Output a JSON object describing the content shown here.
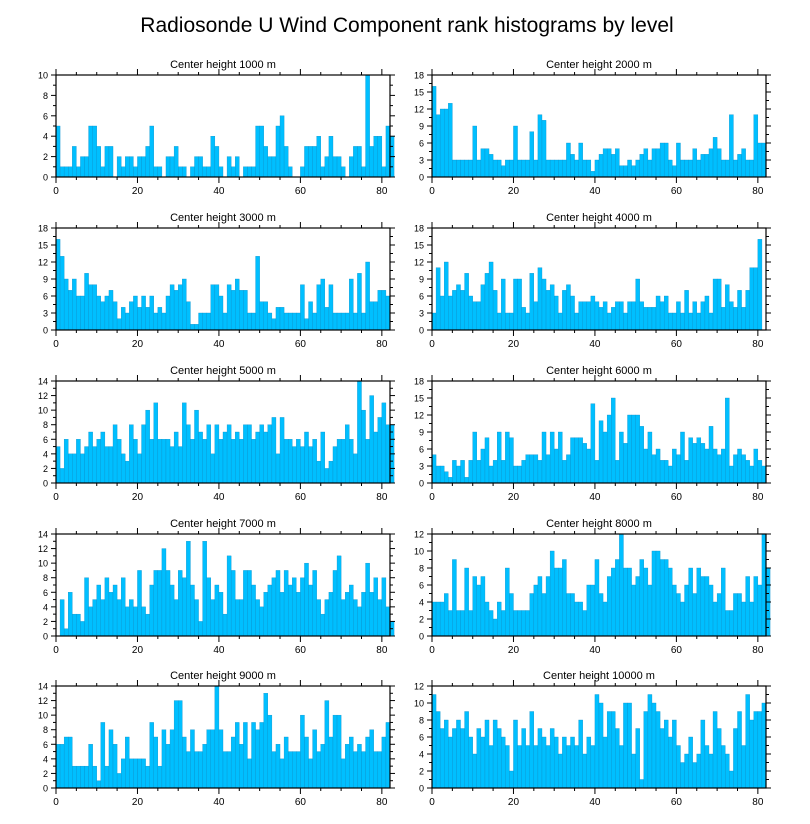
{
  "title": "Radiosonde U Wind Component rank histograms by level",
  "colors": {
    "bar": "#00BFFF",
    "bar_edge": "#0a8fc8",
    "axis": "#000000"
  },
  "chart_data": [
    {
      "type": "bar",
      "title": "Center height 1000 m",
      "xlabel": "",
      "ylabel": "",
      "xlim": [
        0,
        82
      ],
      "ylim": [
        0,
        10
      ],
      "xticks": [
        0,
        20,
        40,
        60,
        80
      ],
      "xtick_labels": [
        "0",
        "20",
        "40",
        "60",
        "80"
      ],
      "yticks": [
        0,
        2,
        4,
        6,
        8,
        10
      ],
      "ytick_labels": [
        "0",
        "2",
        "4",
        "6",
        "8",
        "10"
      ],
      "values": [
        5,
        1,
        1,
        1,
        3,
        1,
        2,
        2,
        5,
        5,
        3,
        1,
        3,
        3,
        0,
        2,
        1,
        2,
        2,
        1,
        2,
        2,
        3,
        5,
        1,
        1,
        0,
        2,
        2,
        3,
        1,
        1,
        0,
        1,
        2,
        2,
        1,
        1,
        4,
        3,
        1,
        0,
        2,
        1,
        2,
        0,
        1,
        1,
        1,
        5,
        5,
        3,
        2,
        2,
        5,
        6,
        3,
        1,
        0,
        0,
        1,
        3,
        3,
        3,
        4,
        1,
        2,
        4,
        2,
        2,
        1,
        0,
        2,
        3,
        3,
        1,
        10,
        3,
        4,
        4,
        1,
        5,
        4
      ],
      "series_name": "1000 m"
    },
    {
      "type": "bar",
      "title": "Center height 2000 m",
      "xlabel": "",
      "ylabel": "",
      "xlim": [
        0,
        82
      ],
      "ylim": [
        0,
        18
      ],
      "xticks": [
        0,
        20,
        40,
        60,
        80
      ],
      "xtick_labels": [
        "0",
        "20",
        "40",
        "60",
        "80"
      ],
      "yticks": [
        0,
        3,
        6,
        9,
        12,
        15,
        18
      ],
      "ytick_labels": [
        "0",
        "3",
        "6",
        "9",
        "12",
        "15",
        "18"
      ],
      "values": [
        16,
        11,
        12,
        12,
        13,
        3,
        3,
        3,
        3,
        3,
        9,
        3,
        5,
        5,
        4,
        3,
        3,
        2,
        3,
        3,
        9,
        3,
        3,
        3,
        8,
        3,
        11,
        10,
        3,
        3,
        3,
        3,
        3,
        6,
        4,
        3,
        6,
        3,
        3,
        1,
        3,
        4,
        5,
        5,
        4,
        5,
        2,
        2,
        3,
        2,
        3,
        4,
        5,
        3,
        5,
        5,
        6,
        6,
        3,
        2,
        6,
        3,
        3,
        3,
        5,
        3,
        4,
        4,
        5,
        7,
        5,
        3,
        3,
        11,
        3,
        4,
        5,
        3,
        3,
        11,
        6,
        6
      ],
      "series_name": "2000 m"
    },
    {
      "type": "bar",
      "title": "Center height 3000 m",
      "xlabel": "",
      "ylabel": "",
      "xlim": [
        0,
        82
      ],
      "ylim": [
        0,
        18
      ],
      "xticks": [
        0,
        20,
        40,
        60,
        80
      ],
      "xtick_labels": [
        "0",
        "20",
        "40",
        "60",
        "80"
      ],
      "yticks": [
        0,
        3,
        6,
        9,
        12,
        15,
        18
      ],
      "ytick_labels": [
        "0",
        "3",
        "6",
        "9",
        "12",
        "15",
        "18"
      ],
      "values": [
        16,
        13,
        9,
        7,
        9,
        6,
        6,
        10,
        8,
        8,
        6,
        5,
        6,
        7,
        5,
        2,
        4,
        3,
        5,
        6,
        4,
        6,
        4,
        6,
        3,
        4,
        3,
        6,
        8,
        7,
        8,
        9,
        5,
        1,
        1,
        3,
        3,
        3,
        8,
        8,
        6,
        3,
        8,
        7,
        9,
        7,
        7,
        3,
        3,
        13,
        5,
        5,
        3,
        2,
        4,
        4,
        3,
        3,
        3,
        3,
        8,
        2,
        5,
        3,
        8,
        9,
        4,
        8,
        3,
        3,
        3,
        3,
        9,
        3,
        10,
        3,
        12,
        5,
        5,
        7,
        7,
        6
      ],
      "series_name": "3000 m"
    },
    {
      "type": "bar",
      "title": "Center height 4000 m",
      "xlabel": "",
      "ylabel": "",
      "xlim": [
        0,
        82
      ],
      "ylim": [
        0,
        18
      ],
      "xticks": [
        0,
        20,
        40,
        60,
        80
      ],
      "xtick_labels": [
        "0",
        "20",
        "40",
        "60",
        "80"
      ],
      "yticks": [
        0,
        3,
        6,
        9,
        12,
        15,
        18
      ],
      "ytick_labels": [
        "0",
        "3",
        "6",
        "9",
        "12",
        "15",
        "18"
      ],
      "values": [
        3,
        11,
        6,
        12,
        6,
        7,
        8,
        7,
        10,
        6,
        5,
        5,
        8,
        10,
        12,
        7,
        3,
        9,
        3,
        3,
        9,
        9,
        4,
        3,
        10,
        5,
        11,
        9,
        7,
        8,
        6,
        3,
        7,
        8,
        6,
        3,
        5,
        5,
        5,
        6,
        5,
        4,
        5,
        3,
        4,
        5,
        5,
        3,
        5,
        5,
        9,
        5,
        4,
        4,
        4,
        6,
        5,
        6,
        3,
        3,
        5,
        3,
        7,
        3,
        5,
        3,
        5,
        6,
        3,
        9,
        9,
        4,
        8,
        5,
        4,
        7,
        4,
        7,
        11,
        11,
        16
      ],
      "series_name": "4000 m"
    },
    {
      "type": "bar",
      "title": "Center height 5000 m",
      "xlabel": "",
      "ylabel": "",
      "xlim": [
        0,
        82
      ],
      "ylim": [
        0,
        14
      ],
      "xticks": [
        0,
        20,
        40,
        60,
        80
      ],
      "xtick_labels": [
        "0",
        "20",
        "40",
        "60",
        "80"
      ],
      "yticks": [
        0,
        2,
        4,
        6,
        8,
        10,
        12,
        14
      ],
      "ytick_labels": [
        "0",
        "2",
        "4",
        "6",
        "8",
        "10",
        "12",
        "14"
      ],
      "values": [
        5,
        2,
        6,
        4,
        4,
        6,
        4,
        5,
        7,
        5,
        6,
        7,
        5,
        5,
        8,
        6,
        4,
        3,
        8,
        6,
        4,
        8,
        10,
        6,
        11,
        6,
        6,
        6,
        5,
        7,
        5,
        11,
        8,
        6,
        10,
        7,
        6,
        8,
        4,
        8,
        6,
        7,
        8,
        6,
        7,
        6,
        8,
        8,
        6,
        7,
        8,
        7,
        8,
        9,
        4,
        9,
        6,
        6,
        5,
        6,
        5,
        7,
        5,
        6,
        3,
        7,
        2,
        3,
        5,
        6,
        6,
        8,
        6,
        4,
        14,
        10,
        6,
        12,
        7,
        9,
        11,
        8,
        8
      ],
      "series_name": "5000 m"
    },
    {
      "type": "bar",
      "title": "Center height 6000 m",
      "xlabel": "",
      "ylabel": "",
      "xlim": [
        0,
        82
      ],
      "ylim": [
        0,
        18
      ],
      "xticks": [
        0,
        20,
        40,
        60,
        80
      ],
      "xtick_labels": [
        "0",
        "20",
        "40",
        "60",
        "80"
      ],
      "yticks": [
        0,
        3,
        6,
        9,
        12,
        15,
        18
      ],
      "ytick_labels": [
        "0",
        "3",
        "6",
        "9",
        "12",
        "15",
        "18"
      ],
      "values": [
        5,
        3,
        3,
        2,
        1,
        4,
        3,
        4,
        1,
        4,
        9,
        4,
        6,
        8,
        3,
        4,
        9,
        4,
        9,
        8,
        3,
        3,
        4,
        5,
        5,
        5,
        4,
        9,
        5,
        9,
        6,
        9,
        4,
        5,
        8,
        8,
        8,
        7,
        6,
        14,
        4,
        11,
        9,
        12,
        15,
        4,
        9,
        7,
        12,
        12,
        12,
        10,
        6,
        9,
        5,
        6,
        4,
        4,
        3,
        6,
        5,
        9,
        4,
        8,
        7,
        8,
        7,
        6,
        10,
        6,
        5,
        6,
        15,
        3,
        5,
        6,
        5,
        4,
        3,
        6,
        4,
        3
      ],
      "series_name": "6000 m"
    },
    {
      "type": "bar",
      "title": "Center height 7000 m",
      "xlabel": "",
      "ylabel": "",
      "xlim": [
        0,
        82
      ],
      "ylim": [
        0,
        14
      ],
      "xticks": [
        0,
        20,
        40,
        60,
        80
      ],
      "xtick_labels": [
        "0",
        "20",
        "40",
        "60",
        "80"
      ],
      "yticks": [
        0,
        2,
        4,
        6,
        8,
        10,
        12,
        14
      ],
      "ytick_labels": [
        "0",
        "2",
        "4",
        "6",
        "8",
        "10",
        "12",
        "14"
      ],
      "values": [
        0,
        5,
        1,
        6,
        3,
        3,
        2,
        8,
        4,
        5,
        7,
        5,
        8,
        6,
        7,
        5,
        8,
        4,
        5,
        4,
        9,
        4,
        3,
        7,
        9,
        9,
        12,
        9,
        7,
        5,
        9,
        8,
        13,
        7,
        5,
        2,
        13,
        8,
        5,
        7,
        6,
        3,
        11,
        9,
        5,
        5,
        9,
        9,
        7,
        5,
        4,
        6,
        7,
        8,
        9,
        6,
        9,
        7,
        8,
        6,
        8,
        10,
        7,
        9,
        5,
        3,
        5,
        6,
        9,
        11,
        5,
        6,
        7,
        5,
        4,
        6,
        10,
        6,
        8,
        5,
        8,
        4,
        2
      ],
      "series_name": "7000 m"
    },
    {
      "type": "bar",
      "title": "Center height 8000 m",
      "xlabel": "",
      "ylabel": "",
      "xlim": [
        0,
        82
      ],
      "ylim": [
        0,
        12
      ],
      "xticks": [
        0,
        20,
        40,
        60,
        80
      ],
      "xtick_labels": [
        "0",
        "20",
        "40",
        "60",
        "80"
      ],
      "yticks": [
        0,
        2,
        4,
        6,
        8,
        10,
        12
      ],
      "ytick_labels": [
        "0",
        "2",
        "4",
        "6",
        "8",
        "10",
        "12"
      ],
      "values": [
        4,
        4,
        4,
        5,
        3,
        9,
        3,
        3,
        8,
        3,
        7,
        6,
        7,
        4,
        3,
        2,
        4,
        3,
        8,
        5,
        3,
        3,
        3,
        3,
        5,
        6,
        7,
        5,
        7,
        10,
        8,
        8,
        9,
        5,
        5,
        4,
        4,
        3,
        6,
        6,
        9,
        5,
        4,
        7,
        8,
        9,
        12,
        8,
        8,
        6,
        7,
        9,
        8,
        6,
        10,
        10,
        9,
        9,
        8,
        6,
        5,
        4,
        6,
        8,
        5,
        8,
        7,
        7,
        6,
        4,
        5,
        8,
        3,
        3,
        5,
        5,
        4,
        7,
        4,
        7,
        6,
        12,
        8
      ],
      "series_name": "8000 m"
    },
    {
      "type": "bar",
      "title": "Center height 9000 m",
      "xlabel": "",
      "ylabel": "",
      "xlim": [
        0,
        82
      ],
      "ylim": [
        0,
        14
      ],
      "xticks": [
        0,
        20,
        40,
        60,
        80
      ],
      "xtick_labels": [
        "0",
        "20",
        "40",
        "60",
        "80"
      ],
      "yticks": [
        0,
        2,
        4,
        6,
        8,
        10,
        12,
        14
      ],
      "ytick_labels": [
        "0",
        "2",
        "4",
        "6",
        "8",
        "10",
        "12",
        "14"
      ],
      "values": [
        6,
        6,
        7,
        7,
        3,
        3,
        3,
        3,
        6,
        3,
        1,
        9,
        3,
        8,
        6,
        2,
        4,
        7,
        4,
        4,
        4,
        4,
        3,
        9,
        7,
        3,
        8,
        6,
        8,
        12,
        12,
        7,
        5,
        8,
        5,
        5,
        6,
        8,
        8,
        14,
        8,
        5,
        5,
        7,
        9,
        6,
        9,
        4,
        9,
        8,
        9,
        13,
        10,
        5,
        6,
        4,
        7,
        5,
        5,
        5,
        10,
        7,
        4,
        8,
        5,
        6,
        12,
        7,
        10,
        10,
        4,
        6,
        7,
        5,
        6,
        5,
        7,
        8,
        5,
        5,
        7,
        9
      ],
      "series_name": "9000 m"
    },
    {
      "type": "bar",
      "title": "Center height 10000 m",
      "xlabel": "",
      "ylabel": "",
      "xlim": [
        0,
        82
      ],
      "ylim": [
        0,
        12
      ],
      "xticks": [
        0,
        20,
        40,
        60,
        80
      ],
      "xtick_labels": [
        "0",
        "20",
        "40",
        "60",
        "80"
      ],
      "yticks": [
        0,
        2,
        4,
        6,
        8,
        10,
        12
      ],
      "ytick_labels": [
        "0",
        "2",
        "4",
        "6",
        "8",
        "10",
        "12"
      ],
      "values": [
        11,
        9,
        7,
        8,
        6,
        7,
        8,
        7,
        9,
        6,
        4,
        7,
        6,
        8,
        5,
        8,
        7,
        6,
        5,
        2,
        8,
        5,
        7,
        5,
        9,
        5,
        7,
        6,
        5,
        7,
        6,
        4,
        6,
        5,
        6,
        5,
        8,
        4,
        6,
        5,
        11,
        10,
        6,
        9,
        9,
        7,
        5,
        10,
        10,
        4,
        7,
        1,
        9,
        11,
        10,
        9,
        7,
        8,
        6,
        8,
        5,
        3,
        4,
        6,
        3,
        4,
        8,
        5,
        4,
        9,
        7,
        5,
        4,
        2,
        7,
        9,
        5,
        11,
        8,
        9,
        9,
        10
      ],
      "series_name": "10000 m"
    }
  ]
}
